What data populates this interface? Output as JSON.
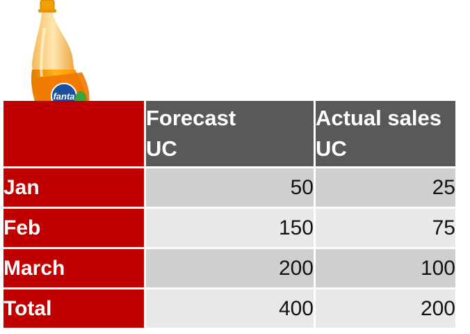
{
  "chart_data": {
    "type": "table",
    "columns": [
      "Forecast UC",
      "Actual sales UC"
    ],
    "header_lines": [
      [
        "Forecast",
        "UC"
      ],
      [
        "Actual sales",
        "UC"
      ]
    ],
    "rows": [
      {
        "label": "Jan",
        "forecast": "50",
        "actual": "25"
      },
      {
        "label": "Feb",
        "forecast": "150",
        "actual": "75"
      },
      {
        "label": "March",
        "forecast": "200",
        "actual": "100"
      },
      {
        "label": "Total",
        "forecast": "400",
        "actual": "200"
      }
    ]
  },
  "logo": {
    "text": "fanta"
  },
  "colors": {
    "row_label_bg": "#c00000",
    "header_bg": "#595959",
    "band_dark": "#cfcfcf",
    "band_light": "#e8e8e8"
  }
}
